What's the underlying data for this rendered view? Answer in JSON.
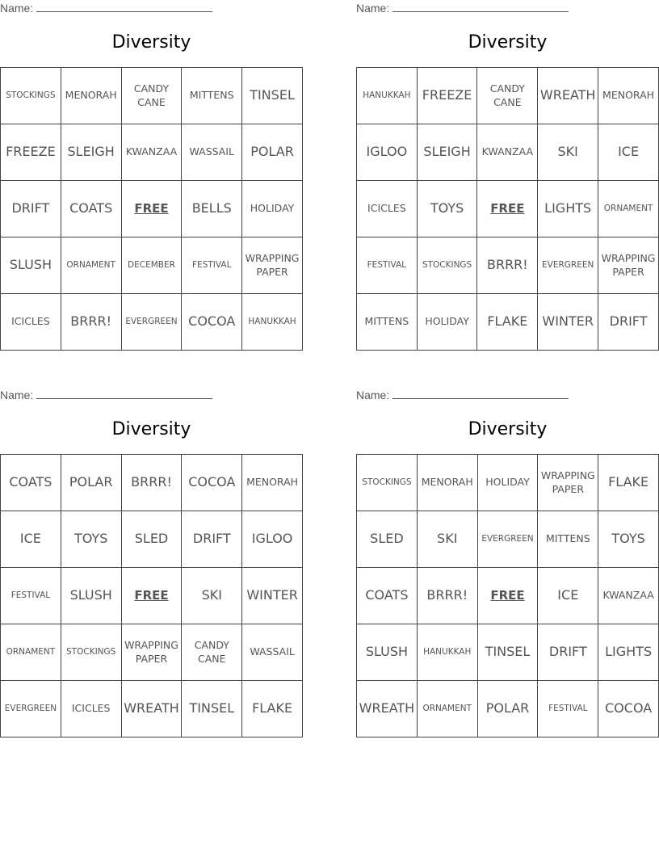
{
  "name_label": "Name:",
  "cards": [
    {
      "title": "Diversity",
      "rows": [
        [
          "STOCKINGS",
          "MENORAH",
          "CANDY CANE",
          "MITTENS",
          "TINSEL"
        ],
        [
          "FREEZE",
          "SLEIGH",
          "KWANZAA",
          "WASSAIL",
          "POLAR"
        ],
        [
          "DRIFT",
          "COATS",
          "FREE",
          "BELLS",
          "HOLIDAY"
        ],
        [
          "SLUSH",
          "ORNAMENT",
          "DECEMBER",
          "FESTIVAL",
          "WRAPPING PAPER"
        ],
        [
          "ICICLES",
          "BRRR!",
          "EVERGREEN",
          "COCOA",
          "HANUKKAH"
        ]
      ]
    },
    {
      "title": "Diversity",
      "rows": [
        [
          "HANUKKAH",
          "FREEZE",
          "CANDY CANE",
          "WREATH",
          "MENORAH"
        ],
        [
          "IGLOO",
          "SLEIGH",
          "KWANZAA",
          "SKI",
          "ICE"
        ],
        [
          "ICICLES",
          "TOYS",
          "FREE",
          "LIGHTS",
          "ORNAMENT"
        ],
        [
          "FESTIVAL",
          "STOCKINGS",
          "BRRR!",
          "EVERGREEN",
          "WRAPPING PAPER"
        ],
        [
          "MITTENS",
          "HOLIDAY",
          "FLAKE",
          "WINTER",
          "DRIFT"
        ]
      ]
    },
    {
      "title": "Diversity",
      "rows": [
        [
          "COATS",
          "POLAR",
          "BRRR!",
          "COCOA",
          "MENORAH"
        ],
        [
          "ICE",
          "TOYS",
          "SLED",
          "DRIFT",
          "IGLOO"
        ],
        [
          "FESTIVAL",
          "SLUSH",
          "FREE",
          "SKI",
          "WINTER"
        ],
        [
          "ORNAMENT",
          "STOCKINGS",
          "WRAPPING PAPER",
          "CANDY CANE",
          "WASSAIL"
        ],
        [
          "EVERGREEN",
          "ICICLES",
          "WREATH",
          "TINSEL",
          "FLAKE"
        ]
      ]
    },
    {
      "title": "Diversity",
      "rows": [
        [
          "STOCKINGS",
          "MENORAH",
          "HOLIDAY",
          "WRAPPING PAPER",
          "FLAKE"
        ],
        [
          "SLED",
          "SKI",
          "EVERGREEN",
          "MITTENS",
          "TOYS"
        ],
        [
          "COATS",
          "BRRR!",
          "FREE",
          "ICE",
          "KWANZAA"
        ],
        [
          "SLUSH",
          "HANUKKAH",
          "TINSEL",
          "DRIFT",
          "LIGHTS"
        ],
        [
          "WREATH",
          "ORNAMENT",
          "POLAR",
          "FESTIVAL",
          "COCOA"
        ]
      ]
    }
  ]
}
